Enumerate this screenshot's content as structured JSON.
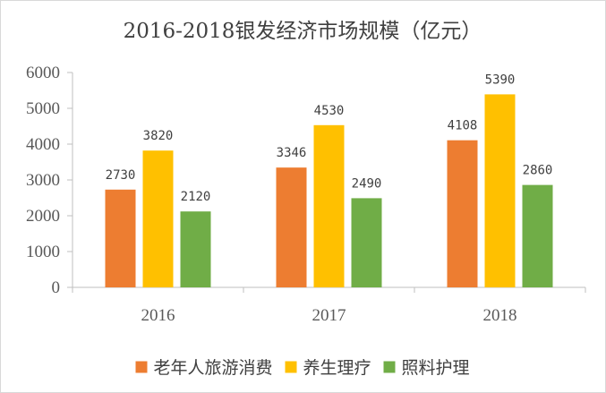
{
  "chart_data": {
    "type": "bar",
    "title": "2016-2018银发经济市场规模（亿元）",
    "categories": [
      "2016",
      "2017",
      "2018"
    ],
    "series": [
      {
        "name": "老年人旅游消费",
        "color": "#ED7D31",
        "values": [
          2730,
          3346,
          4108
        ]
      },
      {
        "name": "养生理疗",
        "color": "#FFC000",
        "values": [
          3820,
          4530,
          5390
        ]
      },
      {
        "name": "照料护理",
        "color": "#70AD47",
        "values": [
          2120,
          2490,
          2860
        ]
      }
    ],
    "ylim": [
      0,
      6000
    ],
    "yticks": [
      "0",
      "1000",
      "2000",
      "3000",
      "4000",
      "5000",
      "6000"
    ],
    "xlabel": "",
    "ylabel": "",
    "legend_position": "bottom",
    "grid": false
  }
}
